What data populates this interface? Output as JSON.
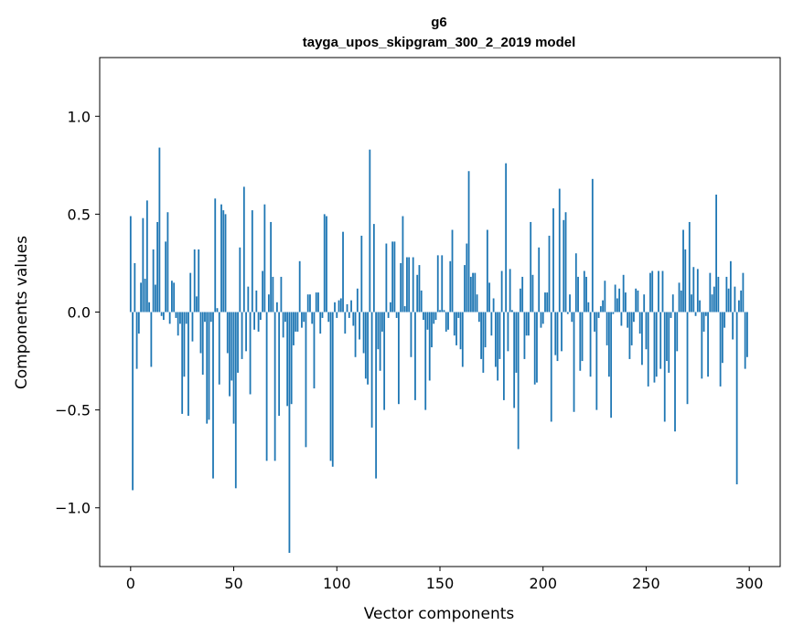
{
  "chart_data": {
    "type": "bar",
    "title": "g6",
    "subtitle": "tayga_upos_skipgram_300_2_2019 model",
    "xlabel": "Vector components",
    "ylabel": "Components values",
    "xlim": [
      -15,
      315
    ],
    "ylim": [
      -1.3,
      1.3
    ],
    "x_ticks": [
      0,
      50,
      100,
      150,
      200,
      250,
      300
    ],
    "x_tick_labels": [
      "0",
      "50",
      "100",
      "150",
      "200",
      "250",
      "300"
    ],
    "y_ticks": [
      -1.0,
      -0.5,
      0.0,
      0.5,
      1.0
    ],
    "y_tick_labels": [
      "−1.0",
      "−0.5",
      "0.0",
      "0.5",
      "1.0"
    ],
    "bar_color": "#1f77b4",
    "values": [
      0.49,
      -0.91,
      0.25,
      -0.29,
      -0.11,
      0.15,
      0.48,
      0.17,
      0.57,
      0.05,
      -0.28,
      0.32,
      0.14,
      0.46,
      0.84,
      -0.02,
      -0.04,
      0.36,
      0.51,
      -0.06,
      0.16,
      0.15,
      -0.03,
      -0.12,
      -0.06,
      -0.52,
      -0.33,
      -0.06,
      -0.53,
      0.2,
      -0.15,
      0.32,
      0.08,
      0.32,
      -0.21,
      -0.32,
      -0.05,
      -0.57,
      -0.55,
      -0.05,
      -0.85,
      0.58,
      0.02,
      -0.37,
      0.55,
      0.52,
      0.5,
      -0.21,
      -0.43,
      -0.35,
      -0.57,
      -0.9,
      -0.31,
      0.33,
      -0.24,
      0.64,
      -0.2,
      0.13,
      -0.42,
      0.52,
      -0.09,
      0.11,
      -0.1,
      -0.04,
      0.21,
      0.55,
      -0.76,
      0.09,
      0.46,
      0.18,
      -0.76,
      0.05,
      -0.53,
      0.18,
      -0.13,
      -0.05,
      -0.48,
      -1.23,
      -0.47,
      -0.17,
      -0.1,
      -0.1,
      0.26,
      -0.08,
      -0.05,
      -0.69,
      0.09,
      0.09,
      -0.06,
      -0.39,
      0.1,
      0.1,
      -0.11,
      -0.03,
      0.5,
      0.49,
      -0.05,
      -0.76,
      -0.79,
      0.05,
      -0.03,
      0.06,
      0.07,
      0.41,
      -0.11,
      0.04,
      -0.03,
      0.06,
      -0.07,
      -0.23,
      0.12,
      -0.14,
      0.39,
      -0.21,
      -0.34,
      -0.37,
      0.83,
      -0.59,
      0.45,
      -0.85,
      -0.19,
      -0.3,
      -0.1,
      -0.5,
      0.35,
      -0.03,
      0.05,
      0.36,
      0.36,
      -0.03,
      -0.47,
      0.25,
      0.49,
      0.03,
      0.28,
      0.28,
      -0.23,
      0.28,
      -0.45,
      0.19,
      0.24,
      0.11,
      -0.04,
      -0.5,
      -0.09,
      -0.35,
      -0.18,
      -0.06,
      -0.04,
      0.29,
      0.01,
      0.29,
      0.01,
      -0.1,
      -0.09,
      0.26,
      0.42,
      -0.12,
      -0.17,
      -0.03,
      -0.19,
      -0.28,
      0.24,
      0.35,
      0.72,
      0.18,
      0.2,
      0.2,
      0.09,
      -0.05,
      -0.24,
      -0.31,
      -0.18,
      0.42,
      0.15,
      -0.12,
      0.07,
      -0.28,
      -0.35,
      -0.24,
      0.21,
      -0.45,
      0.76,
      -0.2,
      0.22,
      0.01,
      -0.49,
      -0.31,
      -0.7,
      0.12,
      0.18,
      -0.24,
      -0.12,
      -0.12,
      0.46,
      0.19,
      -0.37,
      -0.36,
      0.33,
      -0.08,
      -0.06,
      0.1,
      0.1,
      0.39,
      -0.56,
      0.53,
      -0.22,
      -0.25,
      0.63,
      -0.2,
      0.47,
      0.51,
      -0.01,
      0.09,
      -0.05,
      -0.51,
      0.3,
      0.18,
      -0.3,
      -0.25,
      0.21,
      0.18,
      0.05,
      -0.33,
      0.68,
      -0.1,
      -0.5,
      -0.03,
      0.03,
      0.06,
      0.16,
      -0.17,
      -0.33,
      -0.54,
      -0.01,
      0.14,
      0.07,
      0.12,
      -0.07,
      0.19,
      0.1,
      -0.08,
      -0.24,
      -0.17,
      -0.05,
      0.12,
      0.11,
      -0.11,
      -0.27,
      0.09,
      -0.19,
      -0.38,
      0.2,
      0.21,
      -0.36,
      -0.33,
      0.21,
      -0.29,
      0.21,
      -0.56,
      -0.25,
      -0.31,
      -0.03,
      0.09,
      -0.61,
      -0.2,
      0.15,
      0.11,
      0.42,
      0.32,
      -0.47,
      0.46,
      0.09,
      0.23,
      -0.02,
      0.22,
      0.06,
      -0.34,
      -0.1,
      -0.02,
      -0.33,
      0.2,
      0.09,
      0.13,
      0.6,
      0.18,
      -0.38,
      -0.26,
      -0.08,
      0.18,
      0.12,
      0.26,
      -0.14,
      0.13,
      -0.88,
      0.06,
      0.11,
      0.2,
      -0.29,
      -0.23
    ]
  }
}
